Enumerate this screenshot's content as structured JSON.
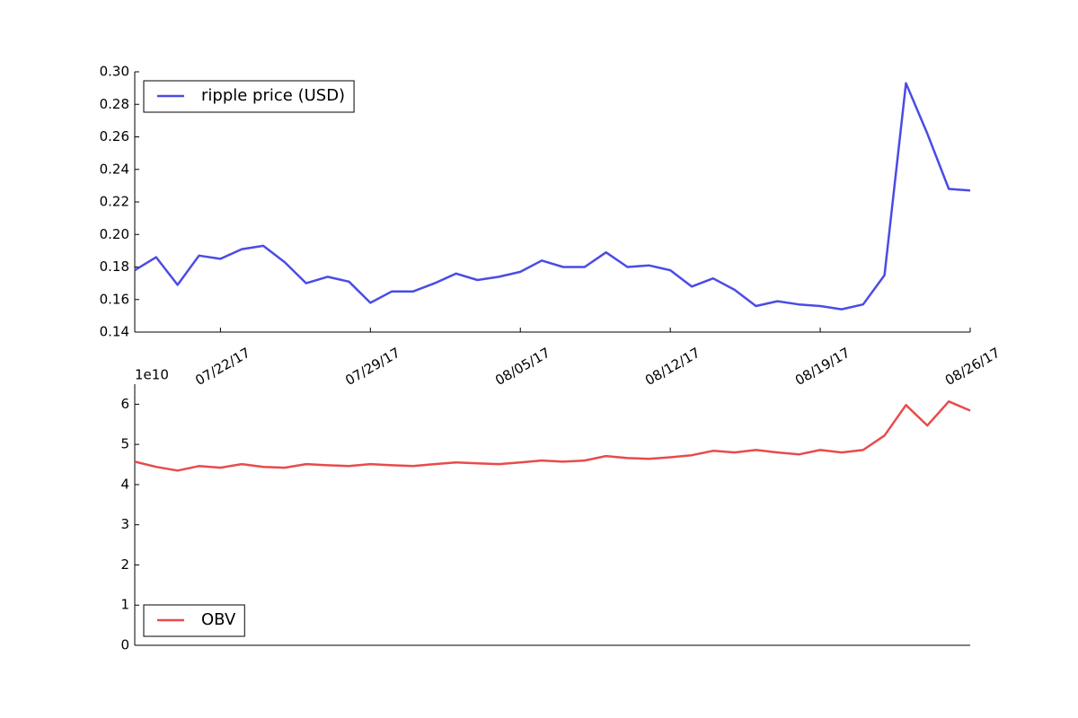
{
  "chart_data": [
    {
      "type": "line",
      "x": [
        "07/18/17",
        "07/19/17",
        "07/20/17",
        "07/21/17",
        "07/22/17",
        "07/23/17",
        "07/24/17",
        "07/25/17",
        "07/26/17",
        "07/27/17",
        "07/28/17",
        "07/29/17",
        "07/30/17",
        "07/31/17",
        "08/01/17",
        "08/02/17",
        "08/03/17",
        "08/04/17",
        "08/05/17",
        "08/06/17",
        "08/07/17",
        "08/08/17",
        "08/09/17",
        "08/10/17",
        "08/11/17",
        "08/12/17",
        "08/13/17",
        "08/14/17",
        "08/15/17",
        "08/16/17",
        "08/17/17",
        "08/18/17",
        "08/19/17",
        "08/20/17",
        "08/21/17",
        "08/22/17",
        "08/23/17",
        "08/24/17",
        "08/25/17",
        "08/26/17"
      ],
      "series": [
        {
          "name": "ripple price (USD)",
          "color": "#4b4be6",
          "values": [
            0.178,
            0.186,
            0.169,
            0.187,
            0.185,
            0.191,
            0.193,
            0.183,
            0.17,
            0.174,
            0.171,
            0.158,
            0.165,
            0.165,
            0.17,
            0.176,
            0.172,
            0.174,
            0.177,
            0.184,
            0.18,
            0.18,
            0.189,
            0.18,
            0.181,
            0.178,
            0.168,
            0.173,
            0.166,
            0.156,
            0.159,
            0.157,
            0.156,
            0.154,
            0.157,
            0.175,
            0.293,
            0.262,
            0.228,
            0.227
          ]
        }
      ],
      "xlim": [
        "07/18/17",
        "08/26/17"
      ],
      "xticks": [
        "07/22/17",
        "07/29/17",
        "08/05/17",
        "08/12/17",
        "08/19/17",
        "08/26/17"
      ],
      "ylim": [
        0.14,
        0.3
      ],
      "yticks": [
        0.14,
        0.16,
        0.18,
        {
          "value": 0.2,
          "label": "0.20"
        },
        0.22,
        0.24,
        0.26,
        0.28,
        {
          "value": 0.3,
          "label": "0.30"
        }
      ],
      "legend": "upper left"
    },
    {
      "type": "line",
      "x": [
        "07/18/17",
        "07/19/17",
        "07/20/17",
        "07/21/17",
        "07/22/17",
        "07/23/17",
        "07/24/17",
        "07/25/17",
        "07/26/17",
        "07/27/17",
        "07/28/17",
        "07/29/17",
        "07/30/17",
        "07/31/17",
        "08/01/17",
        "08/02/17",
        "08/03/17",
        "08/04/17",
        "08/05/17",
        "08/06/17",
        "08/07/17",
        "08/08/17",
        "08/09/17",
        "08/10/17",
        "08/11/17",
        "08/12/17",
        "08/13/17",
        "08/14/17",
        "08/15/17",
        "08/16/17",
        "08/17/17",
        "08/18/17",
        "08/19/17",
        "08/20/17",
        "08/21/17",
        "08/22/17",
        "08/23/17",
        "08/24/17",
        "08/25/17",
        "08/26/17"
      ],
      "series": [
        {
          "name": "OBV",
          "color": "#e84b4b",
          "values": [
            4.57,
            4.44,
            4.35,
            4.46,
            4.42,
            4.51,
            4.44,
            4.42,
            4.51,
            4.48,
            4.46,
            4.51,
            4.48,
            4.46,
            4.51,
            4.55,
            4.53,
            4.51,
            4.55,
            4.6,
            4.57,
            4.6,
            4.71,
            4.66,
            4.64,
            4.68,
            4.73,
            4.84,
            4.8,
            4.86,
            4.8,
            4.75,
            4.86,
            4.8,
            4.86,
            5.22,
            5.98,
            5.47,
            6.07,
            5.84
          ]
        }
      ],
      "xlim": [
        "07/18/17",
        "08/26/17"
      ],
      "ylim": [
        0,
        6.5
      ],
      "yticks": [
        0,
        1,
        2,
        3,
        4,
        5,
        6
      ],
      "offset_text": "1e10",
      "legend": "lower left"
    }
  ]
}
